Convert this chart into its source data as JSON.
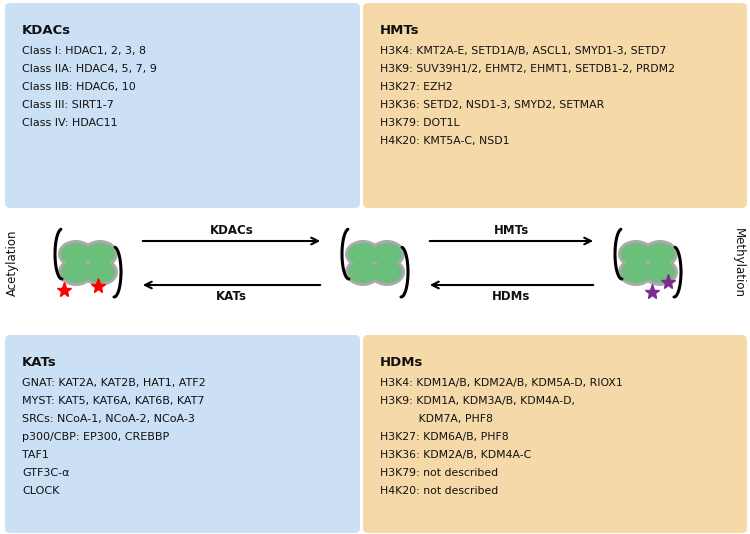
{
  "bg_color": "#ffffff",
  "blue_bg": "#cce0f5",
  "orange_bg": "#f5d9a8",
  "kdacs_title": "KDACs",
  "kdacs_lines": [
    "Class I: HDAC1, 2, 3, 8",
    "Class IIA: HDAC4, 5, 7, 9",
    "Class IIB: HDAC6, 10",
    "Class III: SIRT1-7",
    "Class IV: HDAC11"
  ],
  "hmts_title": "HMTs",
  "hmts_lines": [
    "H3K4: KMT2A-E, SETD1A/B, ASCL1, SMYD1-3, SETD7",
    "H3K9: SUV39H1/2, EHMT2, EHMT1, SETDB1-2, PRDM2",
    "H3K27: EZH2",
    "H3K36: SETD2, NSD1-3, SMYD2, SETMAR",
    "H3K79: DOT1L",
    "H4K20: KMT5A-C, NSD1"
  ],
  "kats_title": "KATs",
  "kats_lines": [
    "GNAT: KAT2A, KAT2B, HAT1, ATF2",
    "MYST: KAT5, KAT6A, KAT6B, KAT7",
    "SRCs: NCoA-1, NCoA-2, NCoA-3",
    "p300/CBP: EP300, CREBBP",
    "TAF1",
    "GTF3C-α",
    "CLOCK"
  ],
  "hdms_title": "HDMs",
  "hdms_lines": [
    "H3K4: KDM1A/B, KDM2A/B, KDM5A-D, RIOX1",
    "H3K9: KDM1A, KDM3A/B, KDM4A-D,",
    "           KDM7A, PHF8",
    "H3K27: KDM6A/B, PHF8",
    "H3K36: KDM2A/B, KDM4A-C",
    "H3K79: not described",
    "H4K20: not described"
  ],
  "arrow_kdacs": "KDACs",
  "arrow_kats": "KATs",
  "arrow_hmts": "HMTs",
  "arrow_hdms": "HDMs",
  "acetylation_label": "Acetylation",
  "methylation_label": "Methylation",
  "green_histone": "#6abf7b",
  "gray_histone": "#aaaaaa",
  "red_star": "#ff0000",
  "purple_star": "#7b2d8b"
}
